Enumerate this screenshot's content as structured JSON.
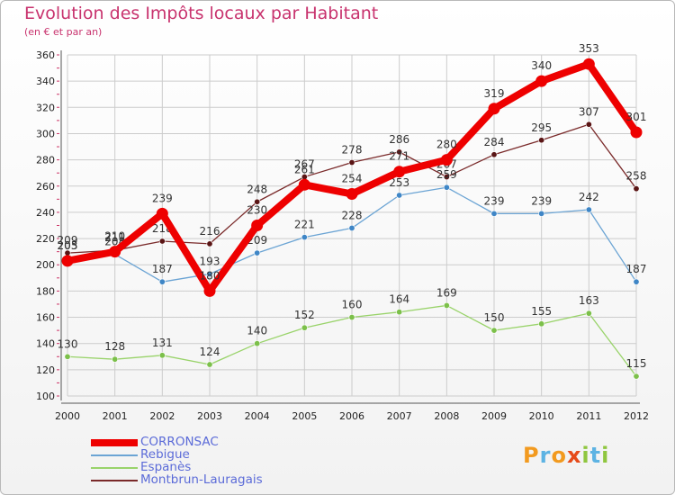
{
  "header": {
    "title": "Evolution des Impôts locaux par Habitant",
    "subtitle": "(en € et par an)"
  },
  "colors": {
    "title": "#c8336e",
    "grid": "#cccccc",
    "axis": "#555555",
    "tick_marks": "#cc3366",
    "legend_text": "#5b6bd8"
  },
  "logo": {
    "letters": [
      "P",
      "r",
      "o",
      "x",
      "i",
      "t",
      "i"
    ],
    "colors": [
      "#f29a1f",
      "#5db3e3",
      "#f29a1f",
      "#e64a19",
      "#8fc63f",
      "#5db3e3",
      "#8fc63f"
    ]
  },
  "chart_data": {
    "type": "line",
    "title": "Evolution des Impôts locaux par Habitant",
    "subtitle": "(en € et par an)",
    "xlabel": "",
    "ylabel": "",
    "x": [
      2000,
      2001,
      2002,
      2003,
      2004,
      2005,
      2006,
      2007,
      2008,
      2009,
      2010,
      2011,
      2012
    ],
    "ylim": [
      100,
      360
    ],
    "yticks": [
      100,
      120,
      140,
      160,
      180,
      200,
      220,
      240,
      260,
      280,
      300,
      320,
      340,
      360
    ],
    "grid": true,
    "legend_position": "bottom-left",
    "series": [
      {
        "name": "Montbrun-Lauragais",
        "color": "#7a2a2a",
        "marker": "#5a1515",
        "weight": "thin",
        "values": [
          209,
          211,
          218,
          216,
          248,
          267,
          278,
          286,
          267,
          284,
          295,
          307,
          258
        ],
        "labels": [
          "209",
          "211",
          "218",
          "216",
          "248",
          "267",
          "278",
          "286",
          "267",
          "284",
          "295",
          "307",
          "258"
        ]
      },
      {
        "name": "Espanès",
        "color": "#99d36a",
        "marker": "#7cc04a",
        "weight": "thin",
        "values": [
          130,
          128,
          131,
          124,
          140,
          152,
          160,
          164,
          169,
          150,
          155,
          163,
          115
        ],
        "labels": [
          "130",
          "128",
          "131",
          "124",
          "140",
          "152",
          "160",
          "164",
          "169",
          "150",
          "155",
          "163",
          "115"
        ]
      },
      {
        "name": "Rebigue",
        "color": "#6ba4d4",
        "marker": "#3f86c6",
        "weight": "thin",
        "values": [
          205,
          208,
          187,
          193,
          209,
          221,
          228,
          253,
          259,
          239,
          239,
          242,
          187
        ],
        "labels": [
          "205",
          "208",
          "187",
          "193",
          "209",
          "221",
          "228",
          "253",
          "259",
          "239",
          "239",
          "242",
          "187"
        ]
      },
      {
        "name": "CORRONSAC",
        "color": "#ee0000",
        "marker": "#ee0000",
        "weight": "thick",
        "values": [
          203,
          210,
          239,
          180,
          230,
          261,
          254,
          271,
          280,
          319,
          340,
          353,
          301
        ],
        "labels": [
          "203",
          "210",
          "239",
          "180",
          "230",
          "261",
          "254",
          "271",
          "280",
          "319",
          "340",
          "353",
          "301"
        ]
      }
    ],
    "legend_order": [
      "CORRONSAC",
      "Rebigue",
      "Espanès",
      "Montbrun-Lauragais"
    ]
  }
}
